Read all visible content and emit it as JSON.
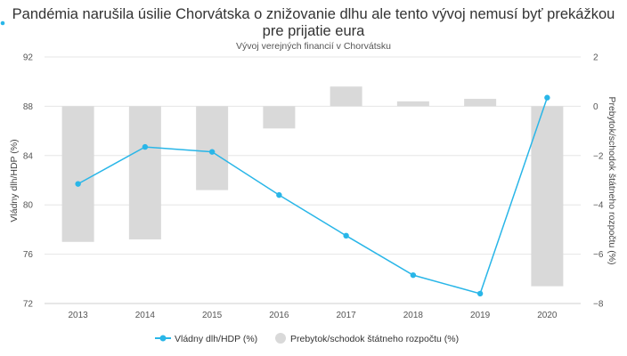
{
  "chart_data": {
    "type": "bar+line",
    "title_lines": [
      "Pandémia narušila úsilie Chorvátska o znižovanie dlhu ale tento vývoj nemusí byť prekážkou",
      "pre prijatie eura"
    ],
    "subtitle": "Vývoj verejných financií v Chorvátsku",
    "categories": [
      "2013",
      "2014",
      "2015",
      "2016",
      "2017",
      "2018",
      "2019",
      "2020"
    ],
    "series": [
      {
        "name": "Vládny dlh/HDP (%)",
        "kind": "line",
        "axis": "left",
        "color": "#29b6e8",
        "values": [
          81.7,
          84.7,
          84.3,
          80.8,
          77.5,
          74.3,
          72.8,
          88.7
        ]
      },
      {
        "name": "Prebytok/schodok štátneho rozpočtu (%)",
        "kind": "bar",
        "axis": "right",
        "color": "#d9d9d9",
        "values": [
          -5.5,
          -5.4,
          -3.4,
          -0.9,
          0.8,
          0.2,
          0.3,
          -7.3
        ]
      }
    ],
    "ylabel_left": "Vládny dlh/HDP (%)",
    "ylabel_right": "Prebytok/schodok štátneho rozpočtu (%)",
    "yticks_left": [
      "92",
      "88",
      "84",
      "80",
      "76",
      "72"
    ],
    "yticks_right": [
      "2",
      "0",
      "−2",
      "−4",
      "−6",
      "−8"
    ],
    "ylim_left": [
      72,
      92
    ],
    "ylim_right": [
      -8,
      2
    ],
    "grid": true,
    "legend_position": "bottom-center"
  }
}
